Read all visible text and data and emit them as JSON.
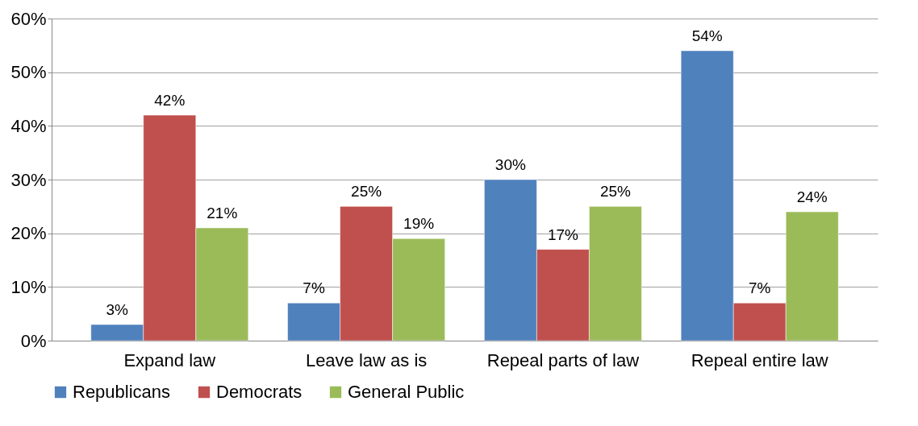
{
  "chart_data": {
    "type": "bar",
    "categories": [
      "Expand law",
      "Leave law as is",
      "Repeal parts of law",
      "Repeal entire law"
    ],
    "series": [
      {
        "name": "Republicans",
        "color": "#4f81bd",
        "values": [
          3,
          7,
          30,
          54
        ],
        "value_labels": [
          "3%",
          "7%",
          "30%",
          "54%"
        ]
      },
      {
        "name": "Democrats",
        "color": "#c0504d",
        "values": [
          42,
          25,
          17,
          7
        ],
        "value_labels": [
          "42%",
          "25%",
          "17%",
          "7%"
        ]
      },
      {
        "name": "General Public",
        "color": "#9bbb59",
        "values": [
          21,
          19,
          25,
          24
        ],
        "value_labels": [
          "21%",
          "19%",
          "25%",
          "24%"
        ]
      }
    ],
    "ylim": [
      0,
      60
    ],
    "yticks": [
      {
        "value": 0,
        "label": "0%"
      },
      {
        "value": 10,
        "label": "10%"
      },
      {
        "value": 20,
        "label": "20%"
      },
      {
        "value": 30,
        "label": "30%"
      },
      {
        "value": 40,
        "label": "40%"
      },
      {
        "value": 50,
        "label": "50%"
      },
      {
        "value": 60,
        "label": "60%"
      }
    ],
    "grid": "y",
    "legend": "bottom"
  }
}
